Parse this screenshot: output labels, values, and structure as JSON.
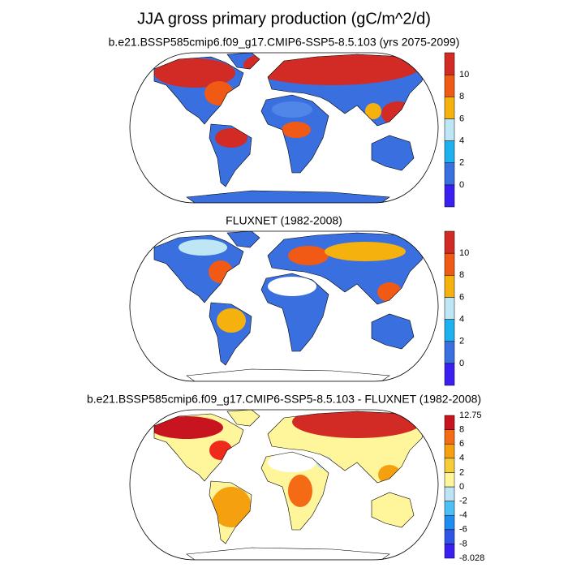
{
  "title": "JJA gross primary production (gC/m^2/d)",
  "panels": [
    {
      "subtitle": "b.e21.BSSP585cmip6.f09_g17.CMIP6-SSP5-8.5.103 (yrs 2075-2099)",
      "colorbar_labels": [
        0,
        2,
        4,
        6,
        8,
        10
      ]
    },
    {
      "subtitle": "FLUXNET (1982-2008)",
      "colorbar_labels": [
        0,
        2,
        4,
        6,
        8,
        10
      ]
    },
    {
      "subtitle": "b.e21.BSSP585cmip6.f09_g17.CMIP6-SSP5-8.5.103 - FLUXNET (1982-2008)",
      "colorbar_labels": [
        12.75,
        8,
        6,
        4,
        2,
        0,
        -2,
        -4,
        -6,
        -8,
        -8.028
      ]
    }
  ]
}
